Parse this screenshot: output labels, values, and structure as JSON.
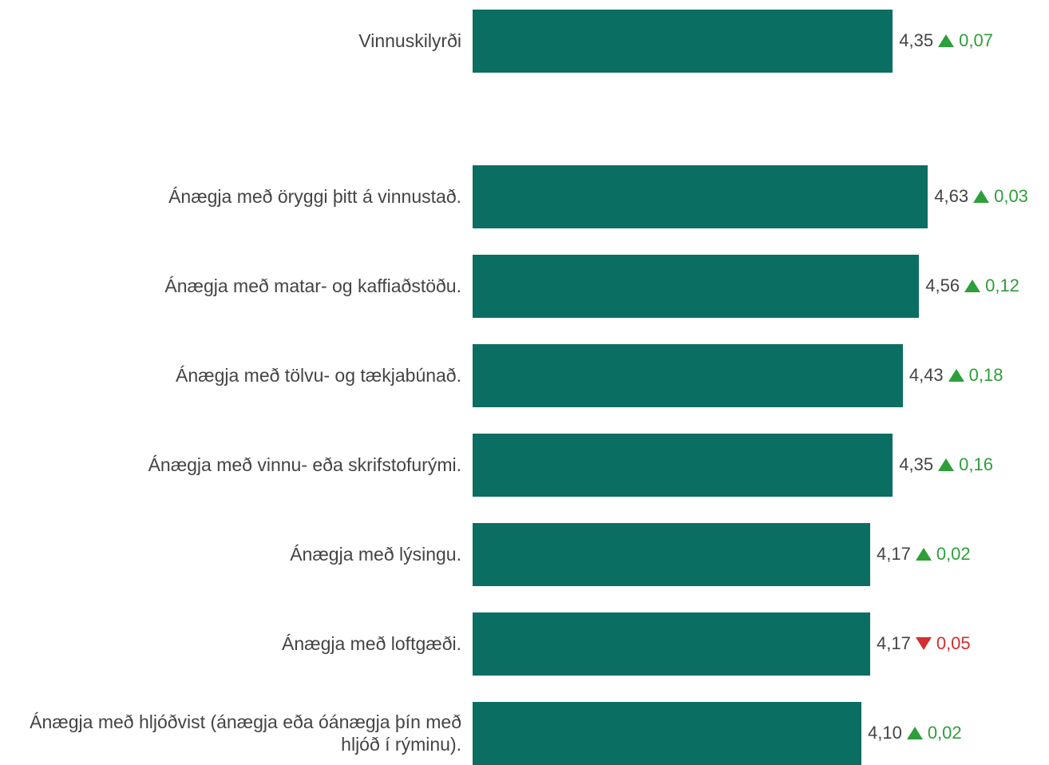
{
  "chart_data": {
    "type": "bar",
    "orientation": "horizontal",
    "categories": [
      "Vinnuskilyrði",
      "Ánægja með öryggi þitt á vinnustað.",
      "Ánægja með matar- og kaffiaðstöðu.",
      "Ánægja með tölvu- og tækjabúnað.",
      "Ánægja með vinnu- eða skrifstofurými.",
      "Ánægja með lýsingu.",
      "Ánægja með loftgæði.",
      "Ánægja með hljóðvist (ánægja eða óánægja þín með hljóð í rýminu)."
    ],
    "values": [
      4.35,
      4.63,
      4.56,
      4.43,
      4.35,
      4.17,
      4.17,
      4.1
    ],
    "value_labels": [
      "4,35",
      "4,63",
      "4,56",
      "4,43",
      "4,35",
      "4,17",
      "4,17",
      "4,10"
    ],
    "changes": [
      0.07,
      0.03,
      0.12,
      0.18,
      0.16,
      0.02,
      0.05,
      0.02
    ],
    "change_labels": [
      "0,07",
      "0,03",
      "0,12",
      "0,18",
      "0,16",
      "0,02",
      "0,05",
      "0,02"
    ],
    "change_directions": [
      "up",
      "up",
      "up",
      "up",
      "up",
      "up",
      "down",
      "up"
    ],
    "color": "#0b6e63",
    "up_color": "#2e9e3a",
    "down_color": "#d32f2f",
    "xlim": [
      1,
      5
    ]
  }
}
